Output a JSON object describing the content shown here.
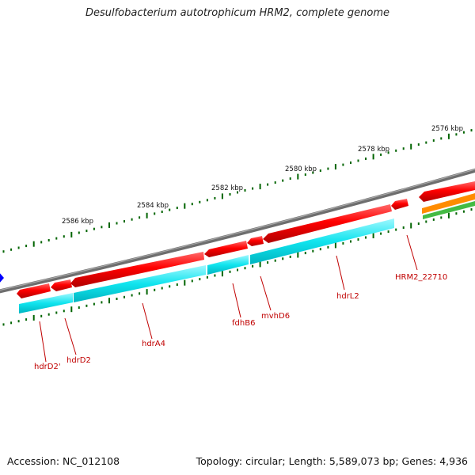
{
  "title": "Desulfobacterium autotrophicum HRM2, complete genome",
  "accession": "Accession: NC_012108",
  "stats": "Topology: circular; Length: 5,589,073 bp; Genes: 4,936",
  "kbp_labels": [
    "2586 kbp",
    "2584 kbp",
    "2582 kbp",
    "2580 kbp",
    "2578 kbp",
    "2576 kbp"
  ],
  "gene_labels": [
    "hdrD2'",
    "hdrD2",
    "hdrA4",
    "fdhB6",
    "mvhD6",
    "hdrL2",
    "HRM2_22710"
  ],
  "colors": {
    "backbone": "#808080",
    "gene_forward": "#e00000",
    "cds_track": "#00e0e8",
    "tick": "#006400",
    "label": "#c00000",
    "marker": "#0000ff",
    "orange_track": "#ff8c00",
    "green_track": "#44bb44"
  }
}
